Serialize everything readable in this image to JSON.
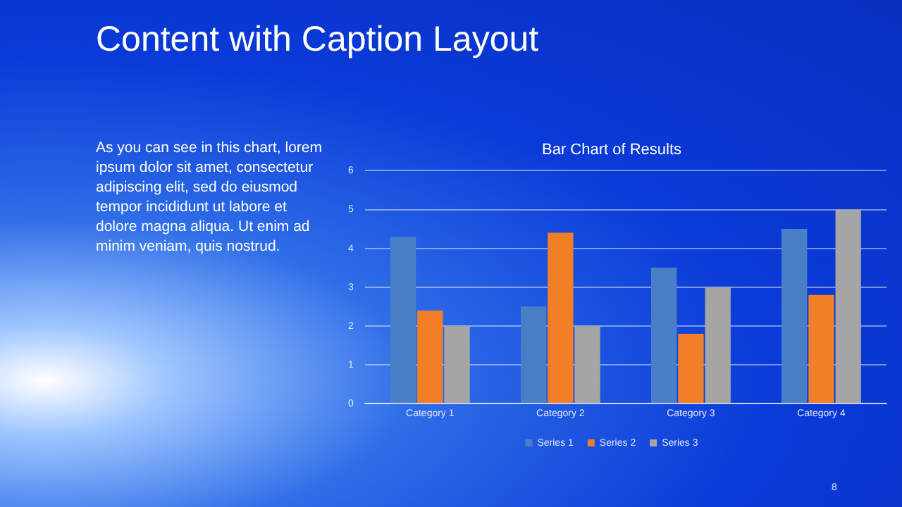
{
  "chart_data": {
    "type": "bar",
    "title": "Bar Chart of Results",
    "categories": [
      "Category 1",
      "Category 2",
      "Category 3",
      "Category 4"
    ],
    "series": [
      {
        "name": "Series 1",
        "color": "#4a7fc8",
        "values": [
          4.3,
          2.5,
          3.5,
          4.5
        ]
      },
      {
        "name": "Series 2",
        "color": "#f07f27",
        "values": [
          2.4,
          4.4,
          1.8,
          2.8
        ]
      },
      {
        "name": "Series 3",
        "color": "#a5a5a5",
        "values": [
          2,
          2,
          3,
          5
        ]
      }
    ],
    "ylim": [
      0,
      6
    ],
    "yticks": [
      0,
      1,
      2,
      3,
      4,
      5,
      6
    ],
    "grid": "y",
    "legend": "bottom",
    "annotations": [
      "Content with Caption Layout",
      "As you can see in this chart, lorem ipsum dolor sit amet, consectetur adipiscing elit, sed do eiusmod tempor incididunt ut labore et dolore magna aliqua. Ut enim ad minim veniam, quis nostrud.",
      "8"
    ]
  }
}
